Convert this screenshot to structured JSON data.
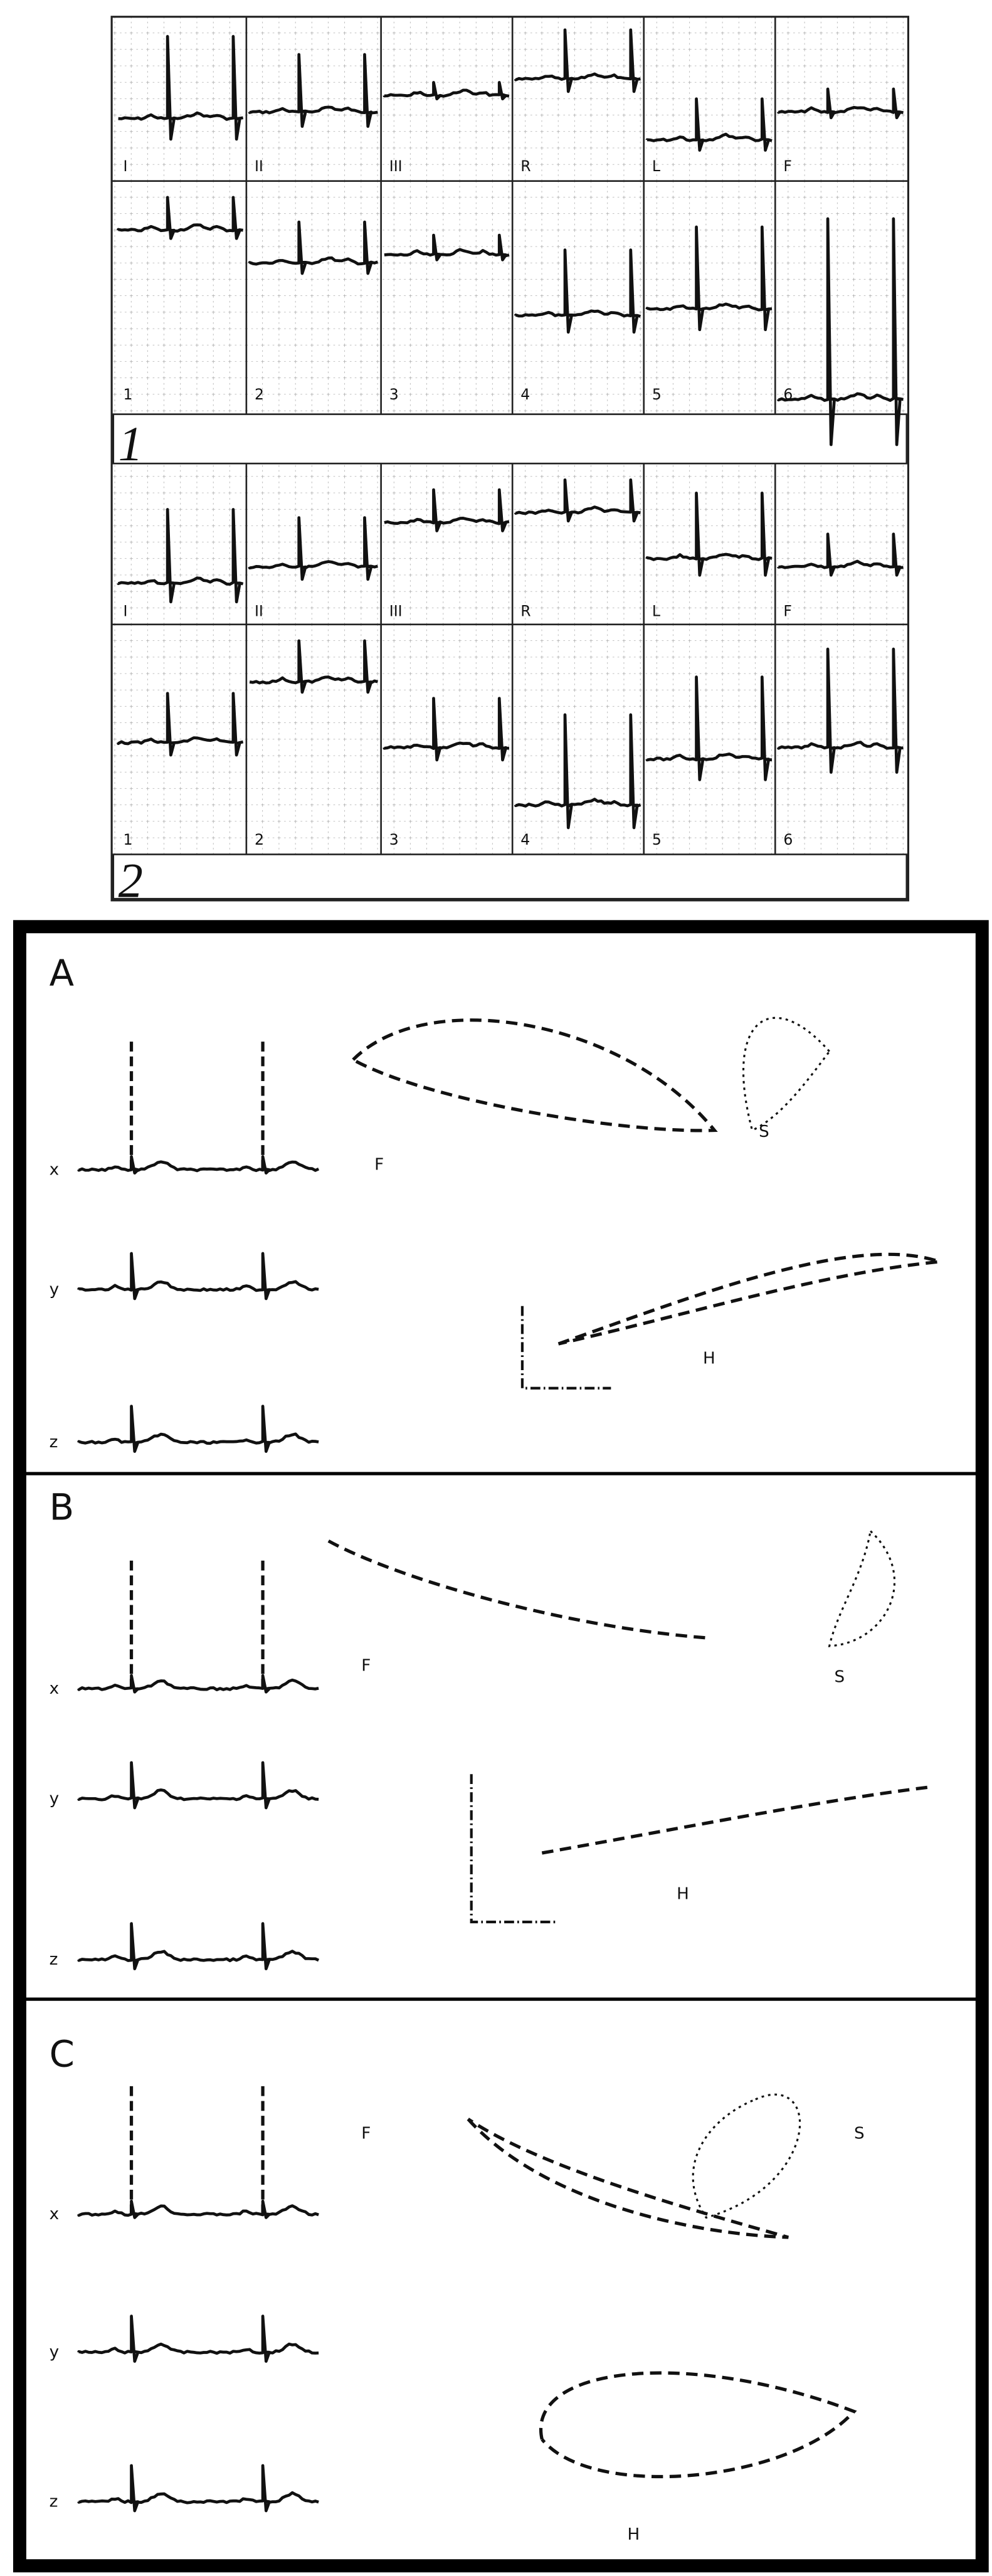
{
  "ecg_panels": [
    {
      "number": "1",
      "limb_leads": [
        "I",
        "II",
        "III",
        "R",
        "L",
        "F"
      ],
      "chest_leads": [
        "1",
        "2",
        "3",
        "4",
        "5",
        "6"
      ]
    },
    {
      "number": "2",
      "limb_leads": [
        "I",
        "II",
        "III",
        "R",
        "L",
        "F"
      ],
      "chest_leads": [
        "1",
        "2",
        "3",
        "4",
        "5",
        "6"
      ]
    }
  ],
  "vcg_panels": [
    {
      "letter": "A",
      "scalar_leads": [
        "x",
        "y",
        "z"
      ],
      "loops": [
        "F",
        "S",
        "H"
      ]
    },
    {
      "letter": "B",
      "scalar_leads": [
        "x",
        "y",
        "z"
      ],
      "loops": [
        "F",
        "S",
        "H"
      ]
    },
    {
      "letter": "C",
      "scalar_leads": [
        "x",
        "y",
        "z"
      ],
      "loops": [
        "F",
        "S",
        "H"
      ]
    }
  ]
}
